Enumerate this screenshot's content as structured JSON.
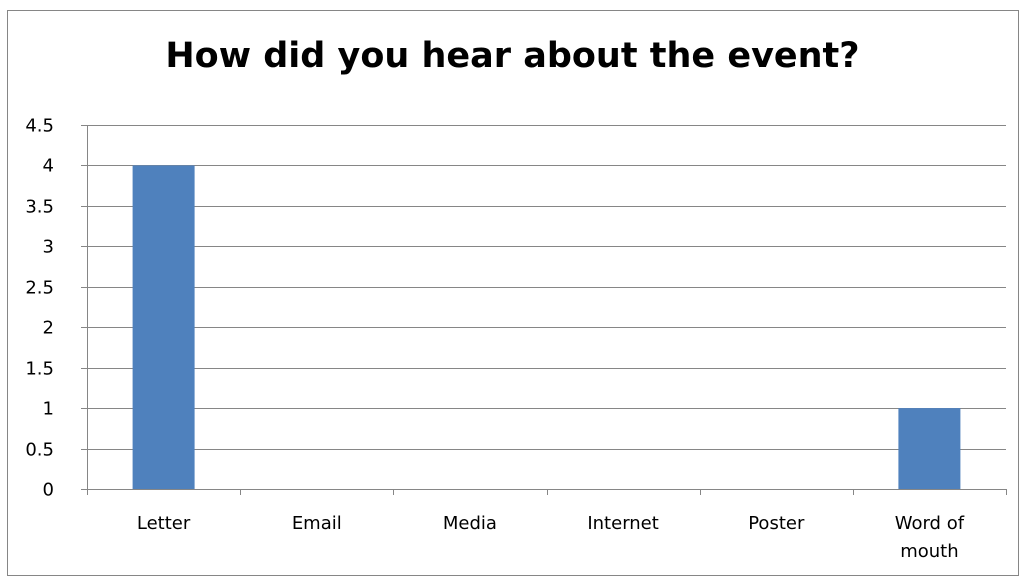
{
  "chart_data": {
    "type": "bar",
    "title": "How did you hear about the event?",
    "xlabel": "",
    "ylabel": "",
    "categories": [
      "Letter",
      "Email",
      "Media",
      "Internet",
      "Poster",
      "Word of mouth"
    ],
    "category_label_lines": [
      [
        "Letter"
      ],
      [
        "Email"
      ],
      [
        "Media"
      ],
      [
        "Internet"
      ],
      [
        "Poster"
      ],
      [
        "Word of",
        "mouth"
      ]
    ],
    "values": [
      4,
      0,
      0,
      0,
      0,
      1
    ],
    "ylim": [
      0,
      4.5
    ],
    "yticks": [
      0,
      0.5,
      1,
      1.5,
      2,
      2.5,
      3,
      3.5,
      4,
      4.5
    ],
    "ytick_labels": [
      "0",
      "0.5",
      "1",
      "1.5",
      "2",
      "2.5",
      "3",
      "3.5",
      "4",
      "4.5"
    ],
    "grid": true,
    "legend": "none",
    "colors": {
      "bar": "#4F81BD",
      "gridline": "#868686",
      "axis": "#868686"
    }
  }
}
